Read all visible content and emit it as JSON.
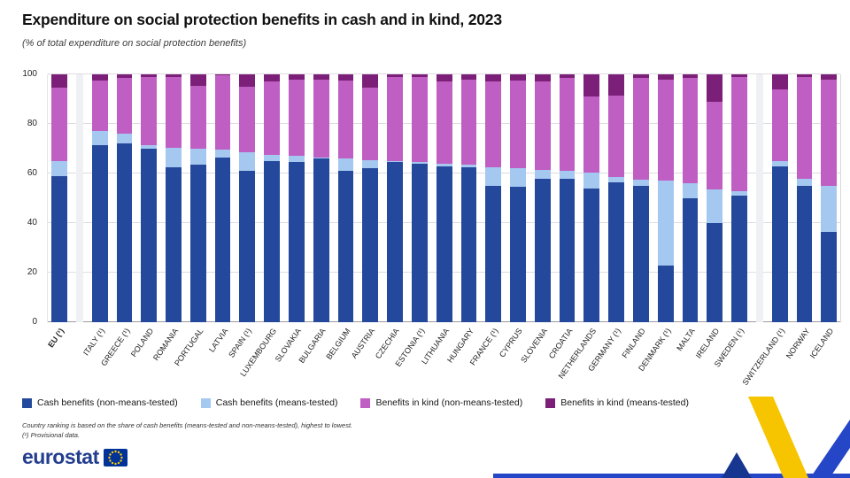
{
  "header": {
    "title": "Expenditure on social protection benefits in cash and in kind, 2023",
    "subtitle": "(% of total expenditure on social protection benefits)"
  },
  "chart_data": {
    "type": "bar",
    "stacked": true,
    "percentage": true,
    "ylim": [
      0,
      100
    ],
    "yticks": [
      0,
      20,
      40,
      60,
      80,
      100
    ],
    "legend_position": "bottom",
    "series": [
      {
        "name": "Cash benefits (non-means-tested)",
        "color": "#24489b"
      },
      {
        "name": "Cash benefits (means-tested)",
        "color": "#a5c8f0"
      },
      {
        "name": "Benefits in kind (non-means-tested)",
        "color": "#c05fc3"
      },
      {
        "name": "Benefits in kind (means-tested)",
        "color": "#7c1f78"
      }
    ],
    "groups": [
      {
        "label": "EU (¹)",
        "bold": true,
        "values": [
          59,
          6,
          29.5,
          5.5
        ]
      },
      {
        "spacer": true
      },
      {
        "label": "ITALY (¹)",
        "values": [
          71.5,
          5.5,
          20.5,
          2.5
        ]
      },
      {
        "label": "GREECE (¹)",
        "values": [
          72,
          4,
          22.5,
          1.5
        ]
      },
      {
        "label": "POLAND",
        "values": [
          70,
          1.5,
          27.5,
          1
        ]
      },
      {
        "label": "ROMANIA",
        "values": [
          62.5,
          8,
          28.5,
          1
        ]
      },
      {
        "label": "PORTUGAL",
        "values": [
          63.5,
          6.5,
          25.5,
          4.5
        ]
      },
      {
        "label": "LATVIA",
        "values": [
          66.5,
          3,
          30,
          0.5
        ]
      },
      {
        "label": "SPAIN (¹)",
        "values": [
          61,
          7.5,
          26.5,
          5
        ]
      },
      {
        "label": "LUXEMBOURG",
        "values": [
          65,
          2.5,
          29.5,
          3
        ]
      },
      {
        "label": "SLOVAKIA",
        "values": [
          64.5,
          2.5,
          31,
          2
        ]
      },
      {
        "label": "BULGARIA",
        "values": [
          66,
          0.5,
          31.5,
          2
        ]
      },
      {
        "label": "BELGIUM",
        "values": [
          61,
          5,
          31.5,
          2.5
        ]
      },
      {
        "label": "AUSTRIA",
        "values": [
          62,
          3.5,
          29,
          5.5
        ]
      },
      {
        "label": "CZECHIA",
        "values": [
          64.5,
          0.5,
          34,
          1
        ]
      },
      {
        "label": "ESTONIA (¹)",
        "values": [
          64,
          0.5,
          34.5,
          1
        ]
      },
      {
        "label": "LITHUANIA",
        "values": [
          63,
          1,
          33,
          3
        ]
      },
      {
        "label": "HUNGARY",
        "values": [
          62.5,
          1,
          34.5,
          2
        ]
      },
      {
        "label": "FRANCE (¹)",
        "values": [
          55,
          7.5,
          34.5,
          3
        ]
      },
      {
        "label": "CYPRUS",
        "values": [
          54.5,
          7.5,
          35.5,
          2.5
        ]
      },
      {
        "label": "SLOVENIA",
        "values": [
          58,
          3.5,
          35.5,
          3
        ]
      },
      {
        "label": "CROATIA",
        "values": [
          58,
          3,
          37.5,
          1.5
        ]
      },
      {
        "label": "NETHERLANDS",
        "values": [
          54,
          6.5,
          30.5,
          9
        ]
      },
      {
        "label": "GERMANY (¹)",
        "values": [
          56.5,
          2,
          33,
          8.5
        ]
      },
      {
        "label": "FINLAND",
        "values": [
          55,
          2.5,
          41,
          1.5
        ]
      },
      {
        "label": "DENMARK (¹)",
        "values": [
          23,
          34,
          41,
          2
        ]
      },
      {
        "label": "MALTA",
        "values": [
          50,
          6,
          42.5,
          1.5
        ]
      },
      {
        "label": "IRELAND",
        "values": [
          40,
          13.5,
          35.5,
          11
        ]
      },
      {
        "label": "SWEDEN (¹)",
        "values": [
          51,
          2,
          46,
          1
        ]
      },
      {
        "spacer": true
      },
      {
        "label": "SWITZERLAND (¹)",
        "values": [
          63,
          2,
          29,
          6
        ]
      },
      {
        "label": "NORWAY",
        "values": [
          55,
          3,
          41,
          1
        ]
      },
      {
        "label": "ICELAND",
        "values": [
          36.5,
          18.5,
          43,
          2
        ]
      }
    ]
  },
  "footnotes": [
    "Country ranking is based on the share of cash benefits (means-tested and non-means-tested), highest to lowest.",
    "(¹) Provisional data."
  ],
  "footer": {
    "logo_text": "eurostat"
  }
}
